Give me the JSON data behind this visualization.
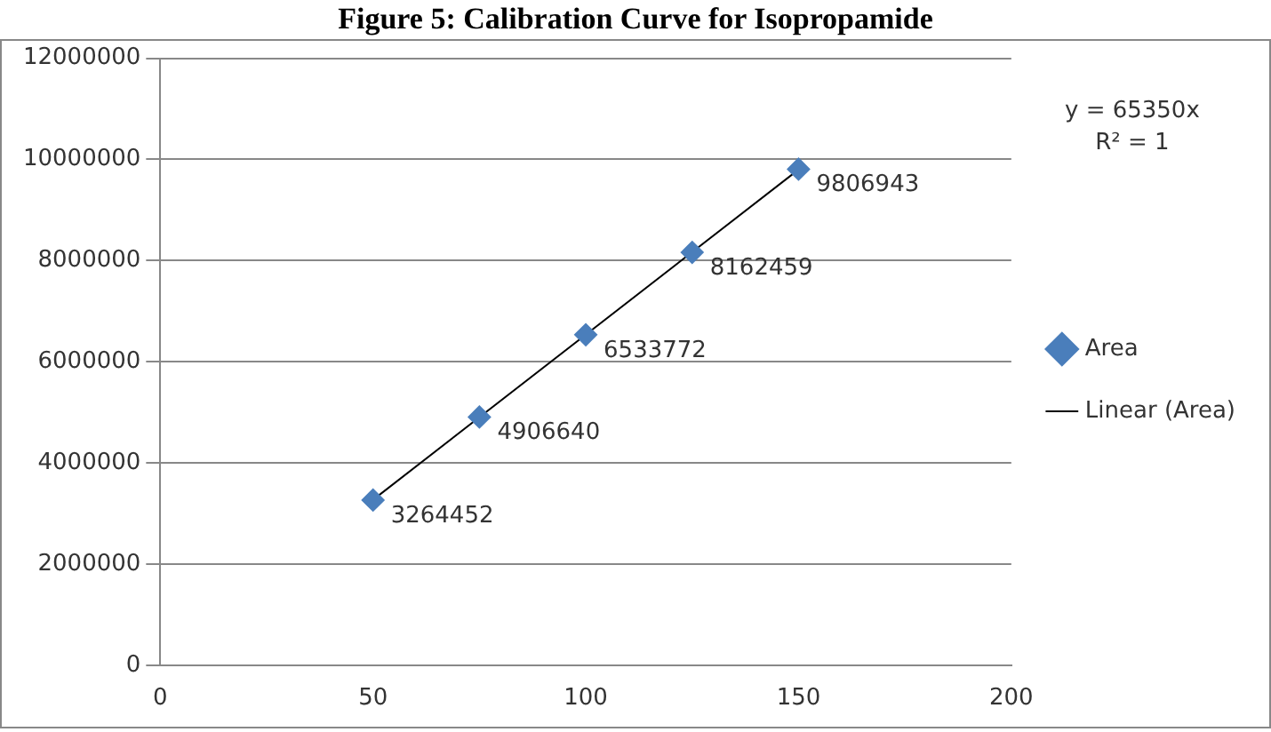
{
  "chart_data": {
    "type": "scatter",
    "title": "Figure 5: Calibration Curve for Isopropamide",
    "xlim": [
      0,
      200
    ],
    "xticks": [
      0,
      50,
      100,
      150,
      200
    ],
    "ylim": [
      0,
      12000000
    ],
    "yticks": [
      0,
      2000000,
      4000000,
      6000000,
      8000000,
      10000000,
      12000000
    ],
    "grid": "y",
    "legend": "right",
    "marker": "diamond",
    "annotations": [
      "y = 65350x",
      "R² = 1"
    ],
    "series": [
      {
        "name": "Area",
        "color": "#4a7ebb",
        "x": [
          50,
          75,
          100,
          125,
          150
        ],
        "values": [
          3264452,
          4906640,
          6533772,
          8162459,
          9806943
        ],
        "value_labels": [
          "3264452",
          "4906640",
          "6533772",
          "8162459",
          "9806943"
        ]
      },
      {
        "name": "Linear (Area)",
        "type": "line",
        "color": "#000000",
        "line_style": "solid",
        "marker": "none",
        "x": [
          50,
          150
        ],
        "values": [
          3270000,
          9800000
        ]
      }
    ]
  }
}
